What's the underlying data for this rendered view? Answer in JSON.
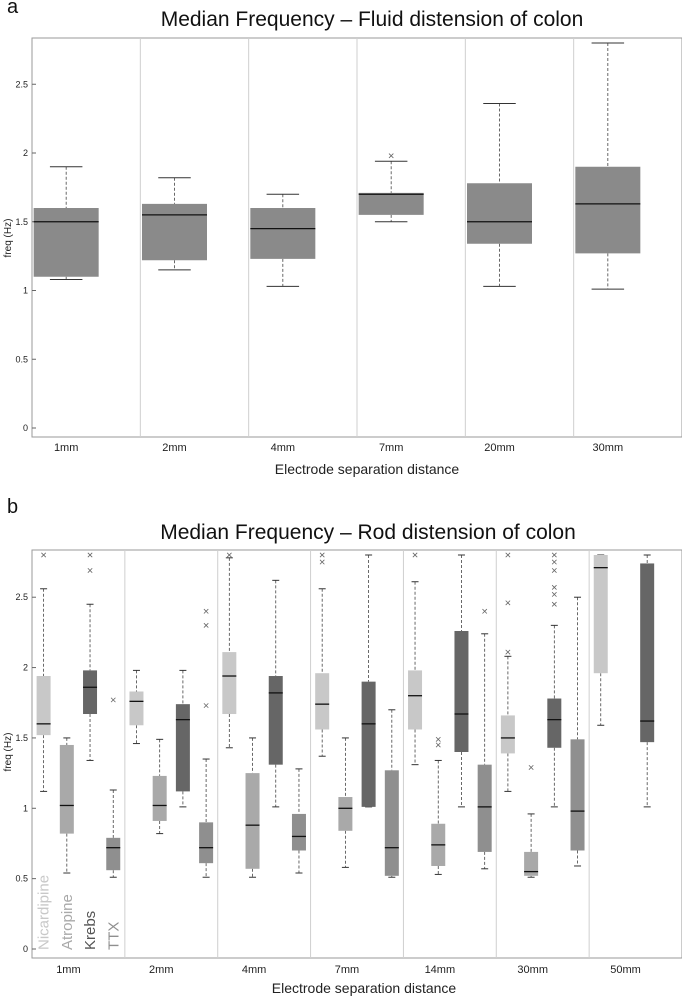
{
  "chart_data": [
    {
      "type": "box",
      "panel": "a",
      "title": "Median Frequency – Fluid distension of colon",
      "xlabel": "Electrode separation distance",
      "ylabel": "freq (Hz)",
      "ylim": [
        0,
        2.8
      ],
      "yticks": [
        "0",
        "0.5",
        "1",
        "1.5",
        "2",
        "2.5"
      ],
      "categories": [
        "1mm",
        "2mm",
        "4mm",
        "7mm",
        "20mm",
        "30mm"
      ],
      "color": "#8a8a8a",
      "boxes": [
        {
          "category": "1mm",
          "wl": 1.08,
          "q1": 1.1,
          "median": 1.5,
          "q3": 1.6,
          "wh": 1.9,
          "outliers": []
        },
        {
          "category": "2mm",
          "wl": 1.15,
          "q1": 1.22,
          "median": 1.55,
          "q3": 1.63,
          "wh": 1.82,
          "outliers": []
        },
        {
          "category": "4mm",
          "wl": 1.03,
          "q1": 1.23,
          "median": 1.45,
          "q3": 1.6,
          "wh": 1.7,
          "outliers": []
        },
        {
          "category": "7mm",
          "wl": 1.5,
          "q1": 1.55,
          "median": 1.7,
          "q3": 1.71,
          "wh": 1.94,
          "outliers": [
            1.98
          ]
        },
        {
          "category": "20mm",
          "wl": 1.03,
          "q1": 1.34,
          "median": 1.5,
          "q3": 1.78,
          "wh": 2.36,
          "outliers": []
        },
        {
          "category": "30mm",
          "wl": 1.01,
          "q1": 1.27,
          "median": 1.63,
          "q3": 1.9,
          "wh": 2.8,
          "outliers": []
        }
      ]
    },
    {
      "type": "box",
      "panel": "b",
      "title": "Median Frequency – Rod distension of colon",
      "xlabel": "Electrode separation distance",
      "ylabel": "freq (Hz)",
      "ylim": [
        0,
        2.8
      ],
      "yticks": [
        "0",
        "0.5",
        "1",
        "1.5",
        "2",
        "2.5"
      ],
      "categories": [
        "1mm",
        "2mm",
        "4mm",
        "7mm",
        "14mm",
        "30mm",
        "50mm"
      ],
      "series": [
        {
          "name": "Nicardipine",
          "color": "#c8c8c8",
          "label_color": "#c8c8c8"
        },
        {
          "name": "Atropine",
          "color": "#a9a9a9",
          "label_color": "#a9a9a9"
        },
        {
          "name": "Krebs",
          "color": "#666666",
          "label_color": "#555555"
        },
        {
          "name": "TTX",
          "color": "#8f8f8f",
          "label_color": "#8f8f8f"
        }
      ],
      "groups": [
        {
          "category": "1mm",
          "boxes": [
            {
              "series": "Nicardipine",
              "wl": 1.12,
              "q1": 1.52,
              "median": 1.6,
              "q3": 1.94,
              "wh": 2.56,
              "outliers": [
                2.8
              ]
            },
            {
              "series": "Atropine",
              "wl": 0.54,
              "q1": 0.82,
              "median": 1.02,
              "q3": 1.45,
              "wh": 1.5,
              "outliers": []
            },
            {
              "series": "Krebs",
              "wl": 1.34,
              "q1": 1.67,
              "median": 1.86,
              "q3": 1.98,
              "wh": 2.45,
              "outliers": [
                2.69,
                2.8
              ]
            },
            {
              "series": "TTX",
              "wl": 0.51,
              "q1": 0.56,
              "median": 0.72,
              "q3": 0.79,
              "wh": 1.13,
              "outliers": [
                1.77
              ]
            }
          ]
        },
        {
          "category": "2mm",
          "boxes": [
            {
              "series": "Nicardipine",
              "wl": 1.46,
              "q1": 1.59,
              "median": 1.76,
              "q3": 1.83,
              "wh": 1.98,
              "outliers": []
            },
            {
              "series": "Atropine",
              "wl": 0.82,
              "q1": 0.91,
              "median": 1.02,
              "q3": 1.23,
              "wh": 1.49,
              "outliers": []
            },
            {
              "series": "Krebs",
              "wl": 1.01,
              "q1": 1.12,
              "median": 1.63,
              "q3": 1.74,
              "wh": 1.98,
              "outliers": []
            },
            {
              "series": "TTX",
              "wl": 0.51,
              "q1": 0.61,
              "median": 0.72,
              "q3": 0.9,
              "wh": 1.35,
              "outliers": [
                1.73,
                2.3,
                2.4
              ]
            }
          ]
        },
        {
          "category": "4mm",
          "boxes": [
            {
              "series": "Nicardipine",
              "wl": 1.43,
              "q1": 1.67,
              "median": 1.94,
              "q3": 2.11,
              "wh": 2.78,
              "outliers": [
                2.8
              ]
            },
            {
              "series": "Atropine",
              "wl": 0.51,
              "q1": 0.57,
              "median": 0.88,
              "q3": 1.25,
              "wh": 1.5,
              "outliers": []
            },
            {
              "series": "Krebs",
              "wl": 1.01,
              "q1": 1.31,
              "median": 1.82,
              "q3": 1.94,
              "wh": 2.62,
              "outliers": []
            },
            {
              "series": "TTX",
              "wl": 0.54,
              "q1": 0.7,
              "median": 0.8,
              "q3": 0.96,
              "wh": 1.28,
              "outliers": []
            }
          ]
        },
        {
          "category": "7mm",
          "boxes": [
            {
              "series": "Nicardipine",
              "wl": 1.37,
              "q1": 1.56,
              "median": 1.74,
              "q3": 1.96,
              "wh": 2.56,
              "outliers": [
                2.75,
                2.8
              ]
            },
            {
              "series": "Atropine",
              "wl": 0.58,
              "q1": 0.84,
              "median": 1.0,
              "q3": 1.08,
              "wh": 1.5,
              "outliers": []
            },
            {
              "series": "Krebs",
              "wl": 1.01,
              "q1": 1.01,
              "median": 1.6,
              "q3": 1.9,
              "wh": 2.8,
              "outliers": []
            },
            {
              "series": "TTX",
              "wl": 0.51,
              "q1": 0.52,
              "median": 0.72,
              "q3": 1.27,
              "wh": 1.7,
              "outliers": []
            }
          ]
        },
        {
          "category": "14mm",
          "boxes": [
            {
              "series": "Nicardipine",
              "wl": 1.31,
              "q1": 1.56,
              "median": 1.8,
              "q3": 1.98,
              "wh": 2.61,
              "outliers": [
                2.8
              ]
            },
            {
              "series": "Atropine",
              "wl": 0.53,
              "q1": 0.59,
              "median": 0.74,
              "q3": 0.89,
              "wh": 1.34,
              "outliers": [
                1.45,
                1.49
              ]
            },
            {
              "series": "Krebs",
              "wl": 1.01,
              "q1": 1.4,
              "median": 1.67,
              "q3": 2.26,
              "wh": 2.8,
              "outliers": []
            },
            {
              "series": "TTX",
              "wl": 0.57,
              "q1": 0.69,
              "median": 1.01,
              "q3": 1.31,
              "wh": 2.24,
              "outliers": [
                2.4
              ]
            }
          ]
        },
        {
          "category": "30mm",
          "boxes": [
            {
              "series": "Nicardipine",
              "wl": 1.12,
              "q1": 1.39,
              "median": 1.5,
              "q3": 1.66,
              "wh": 2.08,
              "outliers": [
                2.11,
                2.46,
                2.8
              ]
            },
            {
              "series": "Atropine",
              "wl": 0.51,
              "q1": 0.52,
              "median": 0.55,
              "q3": 0.69,
              "wh": 0.96,
              "outliers": [
                1.29
              ]
            },
            {
              "series": "Krebs",
              "wl": 1.01,
              "q1": 1.43,
              "median": 1.63,
              "q3": 1.78,
              "wh": 2.3,
              "outliers": [
                2.45,
                2.52,
                2.57,
                2.69,
                2.75,
                2.8
              ]
            },
            {
              "series": "TTX",
              "wl": 0.59,
              "q1": 0.7,
              "median": 0.98,
              "q3": 1.49,
              "wh": 2.5,
              "outliers": []
            }
          ]
        },
        {
          "category": "50mm",
          "boxes": [
            {
              "series": "Nicardipine",
              "wl": 1.59,
              "q1": 1.96,
              "median": 2.71,
              "q3": 2.8,
              "wh": 2.8,
              "outliers": []
            },
            {
              "series": "Krebs",
              "wl": 1.01,
              "q1": 1.47,
              "median": 1.62,
              "q3": 2.74,
              "wh": 2.8,
              "outliers": []
            }
          ]
        }
      ]
    }
  ]
}
